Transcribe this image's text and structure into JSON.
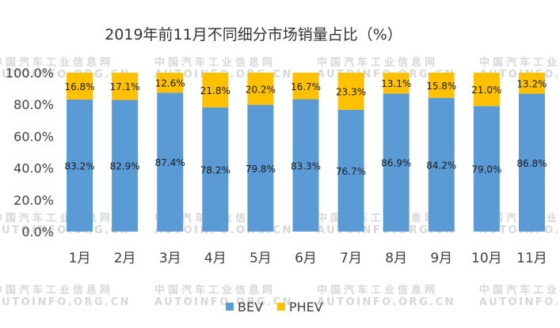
{
  "chart_data": {
    "type": "bar",
    "stacked": true,
    "title": "2019年前11月不同细分市场销量占比（%）",
    "categories": [
      "1月",
      "2月",
      "3月",
      "4月",
      "5月",
      "6月",
      "7月",
      "8月",
      "9月",
      "10月",
      "11月"
    ],
    "series": [
      {
        "name": "BEV",
        "color": "#5b9bd5",
        "values": [
          83.2,
          82.9,
          87.4,
          78.2,
          79.8,
          83.3,
          76.7,
          86.9,
          84.2,
          79.0,
          86.8
        ],
        "labels": [
          "83.2%",
          "82.9%",
          "87.4%",
          "78.2%",
          "79.8%",
          "83.3%",
          "76.7%",
          "86.9%",
          "84.2%",
          "79.0%",
          "86.8%"
        ]
      },
      {
        "name": "PHEV",
        "color": "#ffc000",
        "values": [
          16.8,
          17.1,
          12.6,
          21.8,
          20.2,
          16.7,
          23.3,
          13.1,
          15.8,
          21.0,
          13.2
        ],
        "labels": [
          "16.8%",
          "17.1%",
          "12.6%",
          "21.8%",
          "20.2%",
          "16.7%",
          "23.3%",
          "13.1%",
          "15.8%",
          "21.0%",
          "13.2%"
        ]
      }
    ],
    "ylim": [
      0,
      100
    ],
    "yticks": [
      0,
      20,
      40,
      60,
      80,
      100
    ],
    "ytick_labels": [
      "0.0%",
      "20.0%",
      "40.0%",
      "60.0%",
      "80.0%",
      "100.0%"
    ],
    "xlabel": "",
    "ylabel": "",
    "grid": false,
    "legend_position": "bottom-center"
  },
  "watermark": {
    "line1": "中国汽车工业信息网",
    "line2": "AUTOINFO.ORG.CN"
  }
}
